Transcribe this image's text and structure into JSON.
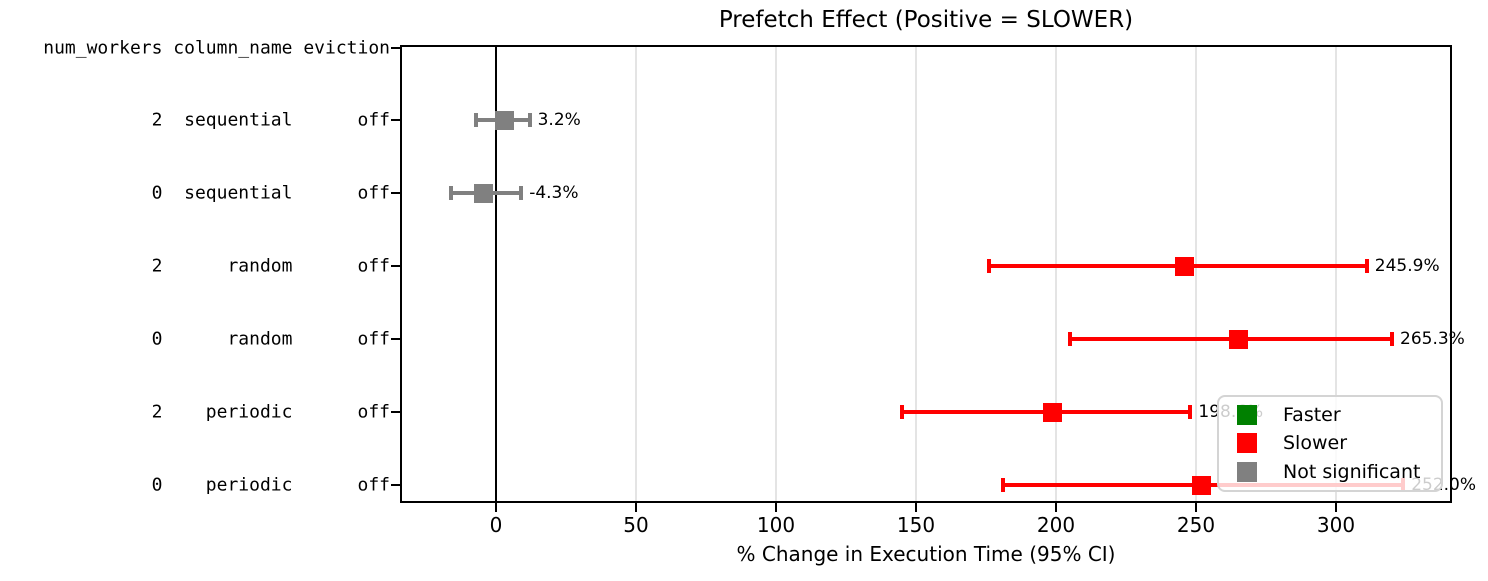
{
  "chart_data": {
    "type": "scatter",
    "subtype": "horizontal-errorbar-forest-plot",
    "title": "Prefetch Effect (Positive = SLOWER)",
    "xlabel": "% Change in Execution Time (95% CI)",
    "xlim": [
      -34,
      341
    ],
    "xticks": [
      0,
      50,
      100,
      150,
      200,
      250,
      300
    ],
    "grid": true,
    "zero_line": 0,
    "y_header": {
      "num_workers": "num_workers",
      "column_name": "column_name",
      "eviction": "eviction"
    },
    "rows": [
      {
        "num_workers": "2",
        "column_name": "sequential",
        "eviction": "off",
        "value": 3.2,
        "ci_low": -7,
        "ci_high": 12,
        "category": "not_significant",
        "label": "3.2%"
      },
      {
        "num_workers": "0",
        "column_name": "sequential",
        "eviction": "off",
        "value": -4.3,
        "ci_low": -16,
        "ci_high": 9,
        "category": "not_significant",
        "label": "-4.3%"
      },
      {
        "num_workers": "2",
        "column_name": "random",
        "eviction": "off",
        "value": 245.9,
        "ci_low": 176,
        "ci_high": 311,
        "category": "slower",
        "label": "245.9%"
      },
      {
        "num_workers": "0",
        "column_name": "random",
        "eviction": "off",
        "value": 265.3,
        "ci_low": 205,
        "ci_high": 320,
        "category": "slower",
        "label": "265.3%"
      },
      {
        "num_workers": "2",
        "column_name": "periodic",
        "eviction": "off",
        "value": 198.6,
        "ci_low": 145,
        "ci_high": 248,
        "category": "slower",
        "label": "198.6%"
      },
      {
        "num_workers": "0",
        "column_name": "periodic",
        "eviction": "off",
        "value": 252.0,
        "ci_low": 181,
        "ci_high": 324,
        "category": "slower",
        "label": "252.0%"
      }
    ],
    "legend": {
      "position": "lower right",
      "entries": [
        {
          "key": "faster",
          "label": "Faster",
          "color": "#008000"
        },
        {
          "key": "slower",
          "label": "Slower",
          "color": "#ff0000"
        },
        {
          "key": "not_significant",
          "label": "Not significant",
          "color": "#808080"
        }
      ]
    },
    "colors": {
      "faster": "#008000",
      "slower": "#ff0000",
      "not_significant": "#808080",
      "grid": "#e4e4e4",
      "axis": "#000000",
      "zero_line": "#000000"
    }
  }
}
